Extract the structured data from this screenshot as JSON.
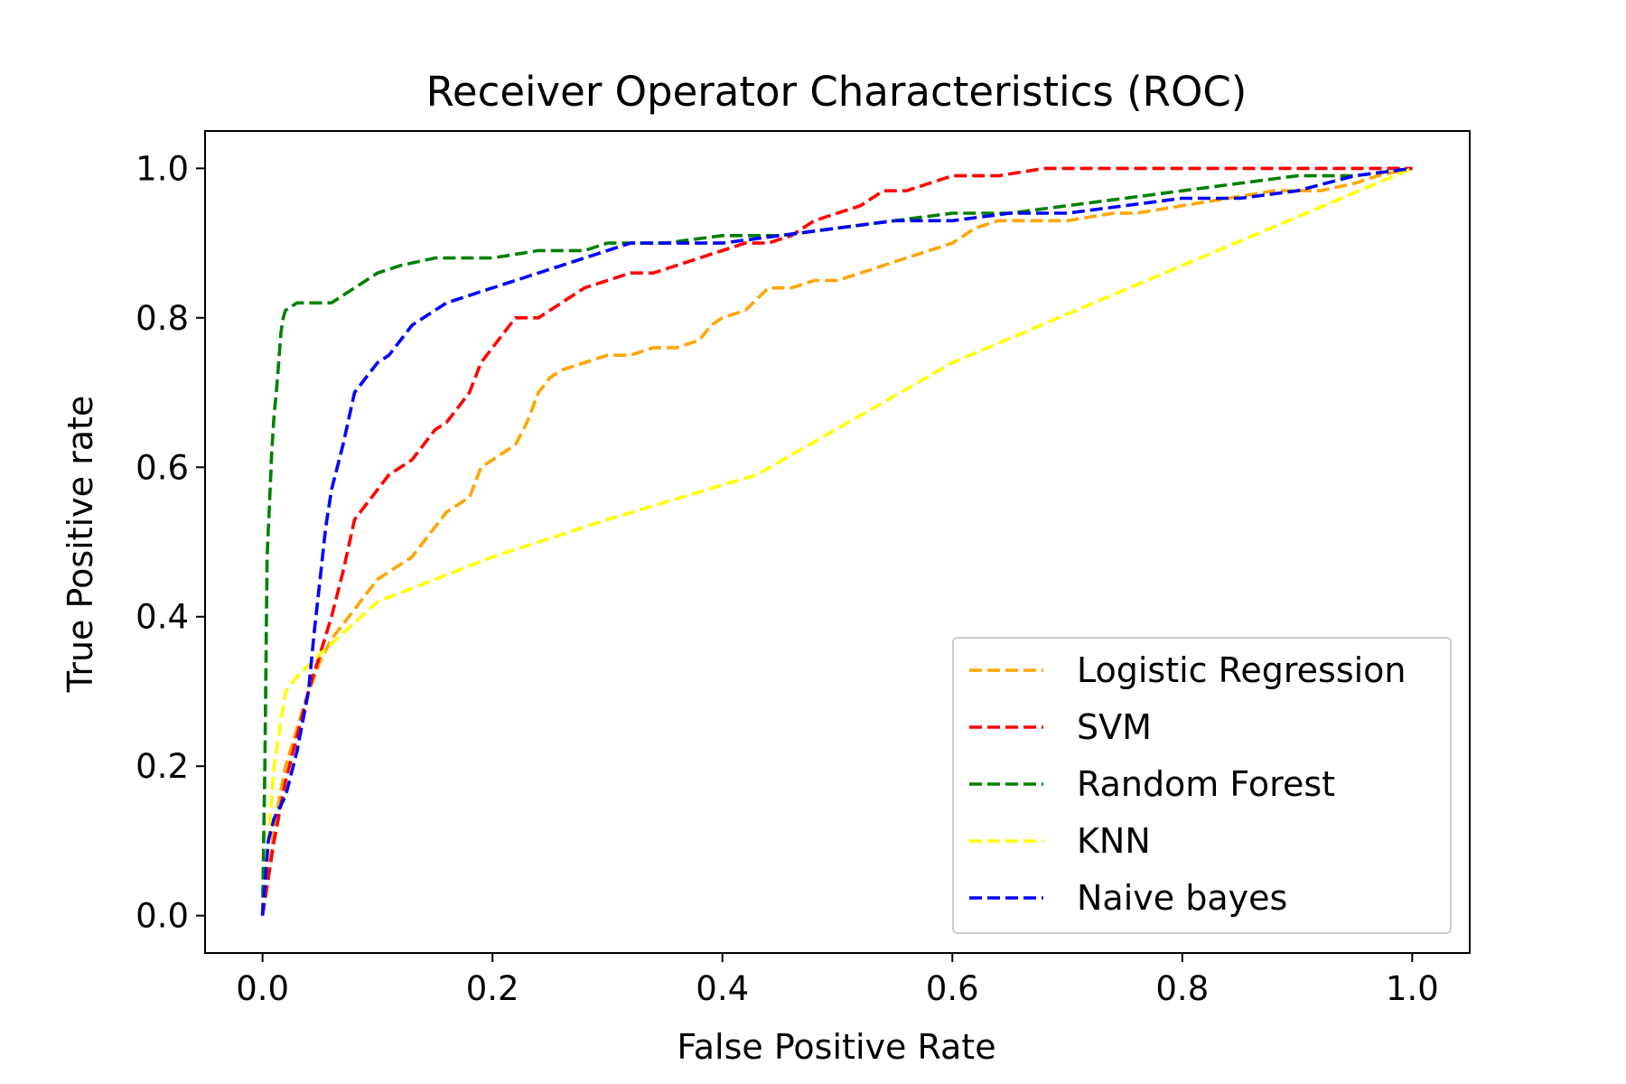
{
  "chart_data": {
    "type": "line",
    "title": "Receiver Operator Characteristics (ROC)",
    "xlabel": "False Positive Rate",
    "ylabel": "True Positive rate",
    "xlim": [
      -0.05,
      1.05
    ],
    "ylim": [
      -0.05,
      1.05
    ],
    "xticks": [
      "0.0",
      "0.2",
      "0.4",
      "0.6",
      "0.8",
      "1.0"
    ],
    "yticks": [
      "0.0",
      "0.2",
      "0.4",
      "0.6",
      "0.8",
      "1.0"
    ],
    "grid": false,
    "legend_position": "lower-right",
    "series": [
      {
        "name": "Logistic Regression",
        "color": "#ffa500",
        "x": [
          0.0,
          0.005,
          0.01,
          0.02,
          0.03,
          0.04,
          0.05,
          0.06,
          0.07,
          0.08,
          0.09,
          0.1,
          0.11,
          0.12,
          0.13,
          0.14,
          0.15,
          0.16,
          0.17,
          0.18,
          0.19,
          0.2,
          0.21,
          0.22,
          0.23,
          0.24,
          0.25,
          0.26,
          0.28,
          0.3,
          0.32,
          0.34,
          0.36,
          0.38,
          0.39,
          0.4,
          0.42,
          0.44,
          0.46,
          0.48,
          0.5,
          0.52,
          0.54,
          0.56,
          0.58,
          0.6,
          0.62,
          0.64,
          0.66,
          0.7,
          0.74,
          0.76,
          0.8,
          0.84,
          0.88,
          0.92,
          0.95,
          0.97,
          1.0
        ],
        "y": [
          0.0,
          0.05,
          0.12,
          0.2,
          0.25,
          0.3,
          0.34,
          0.37,
          0.39,
          0.41,
          0.43,
          0.45,
          0.46,
          0.47,
          0.48,
          0.5,
          0.52,
          0.54,
          0.55,
          0.56,
          0.6,
          0.61,
          0.62,
          0.63,
          0.66,
          0.7,
          0.72,
          0.73,
          0.74,
          0.75,
          0.75,
          0.76,
          0.76,
          0.77,
          0.79,
          0.8,
          0.81,
          0.84,
          0.84,
          0.85,
          0.85,
          0.86,
          0.87,
          0.88,
          0.89,
          0.9,
          0.92,
          0.93,
          0.93,
          0.93,
          0.94,
          0.94,
          0.95,
          0.96,
          0.97,
          0.97,
          0.98,
          0.99,
          1.0
        ]
      },
      {
        "name": "SVM",
        "color": "#ff0000",
        "x": [
          0.0,
          0.01,
          0.02,
          0.03,
          0.04,
          0.05,
          0.06,
          0.07,
          0.08,
          0.09,
          0.1,
          0.11,
          0.12,
          0.13,
          0.14,
          0.15,
          0.16,
          0.17,
          0.18,
          0.19,
          0.2,
          0.21,
          0.22,
          0.24,
          0.26,
          0.28,
          0.3,
          0.32,
          0.34,
          0.36,
          0.38,
          0.4,
          0.42,
          0.44,
          0.46,
          0.48,
          0.5,
          0.52,
          0.54,
          0.56,
          0.58,
          0.6,
          0.64,
          0.68,
          0.72,
          0.8,
          0.9,
          1.0
        ],
        "y": [
          0.0,
          0.1,
          0.18,
          0.24,
          0.3,
          0.35,
          0.4,
          0.46,
          0.53,
          0.55,
          0.57,
          0.59,
          0.6,
          0.61,
          0.63,
          0.65,
          0.66,
          0.68,
          0.7,
          0.74,
          0.76,
          0.78,
          0.8,
          0.8,
          0.82,
          0.84,
          0.85,
          0.86,
          0.86,
          0.87,
          0.88,
          0.89,
          0.9,
          0.9,
          0.91,
          0.93,
          0.94,
          0.95,
          0.97,
          0.97,
          0.98,
          0.99,
          0.99,
          1.0,
          1.0,
          1.0,
          1.0,
          1.0
        ]
      },
      {
        "name": "Random Forest",
        "color": "#008000",
        "x": [
          0.0,
          0.002,
          0.004,
          0.006,
          0.008,
          0.01,
          0.012,
          0.014,
          0.016,
          0.018,
          0.02,
          0.03,
          0.04,
          0.06,
          0.07,
          0.08,
          0.09,
          0.1,
          0.12,
          0.15,
          0.2,
          0.24,
          0.28,
          0.3,
          0.35,
          0.4,
          0.45,
          0.5,
          0.55,
          0.6,
          0.65,
          0.7,
          0.75,
          0.8,
          0.85,
          0.9,
          0.95,
          1.0
        ],
        "y": [
          0.0,
          0.2,
          0.48,
          0.55,
          0.62,
          0.67,
          0.7,
          0.74,
          0.78,
          0.8,
          0.81,
          0.82,
          0.82,
          0.82,
          0.83,
          0.84,
          0.85,
          0.86,
          0.87,
          0.88,
          0.88,
          0.89,
          0.89,
          0.9,
          0.9,
          0.91,
          0.91,
          0.92,
          0.93,
          0.94,
          0.94,
          0.95,
          0.96,
          0.97,
          0.98,
          0.99,
          0.99,
          1.0
        ]
      },
      {
        "name": "KNN",
        "color": "#ffff00",
        "x": [
          0.0,
          0.01,
          0.02,
          0.03,
          0.05,
          0.1,
          0.2,
          0.3,
          0.43,
          0.6,
          0.8,
          1.0
        ],
        "y": [
          0.0,
          0.2,
          0.3,
          0.32,
          0.35,
          0.42,
          0.48,
          0.53,
          0.59,
          0.74,
          0.87,
          1.0
        ]
      },
      {
        "name": "Naive bayes",
        "color": "#0000ff",
        "x": [
          0.0,
          0.005,
          0.01,
          0.02,
          0.03,
          0.04,
          0.045,
          0.05,
          0.055,
          0.06,
          0.07,
          0.08,
          0.09,
          0.1,
          0.11,
          0.12,
          0.13,
          0.14,
          0.16,
          0.18,
          0.2,
          0.22,
          0.24,
          0.26,
          0.28,
          0.3,
          0.32,
          0.35,
          0.4,
          0.45,
          0.5,
          0.55,
          0.6,
          0.65,
          0.7,
          0.75,
          0.8,
          0.85,
          0.9,
          0.95,
          1.0
        ],
        "y": [
          0.0,
          0.1,
          0.13,
          0.16,
          0.22,
          0.3,
          0.38,
          0.45,
          0.52,
          0.57,
          0.63,
          0.7,
          0.72,
          0.74,
          0.75,
          0.77,
          0.79,
          0.8,
          0.82,
          0.83,
          0.84,
          0.85,
          0.86,
          0.87,
          0.88,
          0.89,
          0.9,
          0.9,
          0.9,
          0.91,
          0.92,
          0.93,
          0.93,
          0.94,
          0.94,
          0.95,
          0.96,
          0.96,
          0.97,
          0.99,
          1.0
        ]
      }
    ]
  }
}
